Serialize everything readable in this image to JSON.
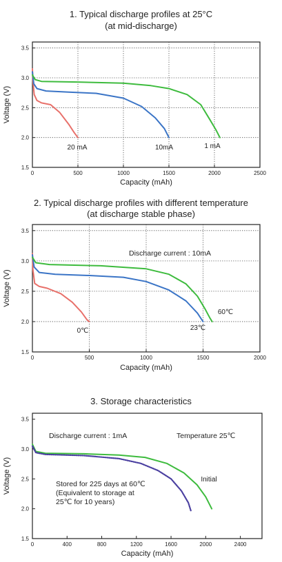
{
  "chart_data": [
    {
      "type": "line",
      "title_line1": "1. Typical discharge profiles at 25°C",
      "title_line2": "(at mid-discharge)",
      "xlabel": "Capacity (mAh)",
      "ylabel": "Voltage (V)",
      "xlim": [
        0,
        2500
      ],
      "ylim": [
        1.5,
        3.6
      ],
      "xticks": [
        "0",
        "500",
        "1000",
        "1500",
        "2000",
        "2500"
      ],
      "yticks": [
        "1.5",
        "2.0",
        "2.5",
        "3.0",
        "3.5"
      ],
      "grid": "dotted",
      "series": [
        {
          "name": "20 mA",
          "color": "#e8706a",
          "points": [
            [
              0,
              3.15
            ],
            [
              5,
              2.95
            ],
            [
              20,
              2.72
            ],
            [
              50,
              2.62
            ],
            [
              100,
              2.58
            ],
            [
              200,
              2.55
            ],
            [
              300,
              2.42
            ],
            [
              400,
              2.22
            ],
            [
              460,
              2.08
            ],
            [
              500,
              2.0
            ]
          ]
        },
        {
          "name": "10mA",
          "color": "#3a74c6",
          "points": [
            [
              0,
              3.1
            ],
            [
              15,
              2.9
            ],
            [
              50,
              2.82
            ],
            [
              150,
              2.78
            ],
            [
              400,
              2.76
            ],
            [
              700,
              2.74
            ],
            [
              1000,
              2.66
            ],
            [
              1200,
              2.52
            ],
            [
              1350,
              2.33
            ],
            [
              1450,
              2.15
            ],
            [
              1500,
              2.0
            ]
          ]
        },
        {
          "name": "1 mA",
          "color": "#3dbb3d",
          "points": [
            [
              0,
              3.05
            ],
            [
              30,
              2.97
            ],
            [
              100,
              2.94
            ],
            [
              500,
              2.93
            ],
            [
              1000,
              2.91
            ],
            [
              1300,
              2.87
            ],
            [
              1500,
              2.82
            ],
            [
              1700,
              2.72
            ],
            [
              1850,
              2.55
            ],
            [
              1950,
              2.3
            ],
            [
              2020,
              2.12
            ],
            [
              2060,
              2.0
            ]
          ]
        }
      ]
    },
    {
      "type": "line",
      "title_line1": "2. Typical discharge profiles with different temperature",
      "title_line2": "(at discharge stable phase)",
      "annotation": "Discharge current : 10mA",
      "xlabel": "Capacity (mAh)",
      "ylabel": "Voltage (V)",
      "xlim": [
        0,
        2000
      ],
      "ylim": [
        1.5,
        3.6
      ],
      "xticks": [
        "0",
        "500",
        "1000",
        "1500",
        "2000"
      ],
      "yticks": [
        "1.5",
        "2.0",
        "2.5",
        "3.0",
        "3.5"
      ],
      "grid": "dotted",
      "series": [
        {
          "name": "0℃",
          "color": "#e8706a",
          "points": [
            [
              0,
              3.12
            ],
            [
              5,
              2.85
            ],
            [
              20,
              2.63
            ],
            [
              60,
              2.58
            ],
            [
              130,
              2.55
            ],
            [
              250,
              2.46
            ],
            [
              350,
              2.32
            ],
            [
              430,
              2.16
            ],
            [
              480,
              2.03
            ],
            [
              500,
              2.0
            ]
          ]
        },
        {
          "name": "23℃",
          "color": "#3a74c6",
          "points": [
            [
              0,
              3.1
            ],
            [
              15,
              2.9
            ],
            [
              60,
              2.81
            ],
            [
              200,
              2.78
            ],
            [
              500,
              2.76
            ],
            [
              800,
              2.73
            ],
            [
              1000,
              2.66
            ],
            [
              1200,
              2.52
            ],
            [
              1350,
              2.34
            ],
            [
              1450,
              2.14
            ],
            [
              1500,
              2.0
            ]
          ]
        },
        {
          "name": "60℃",
          "color": "#3dbb3d",
          "points": [
            [
              0,
              3.06
            ],
            [
              30,
              2.97
            ],
            [
              150,
              2.94
            ],
            [
              600,
              2.92
            ],
            [
              1000,
              2.87
            ],
            [
              1200,
              2.78
            ],
            [
              1350,
              2.62
            ],
            [
              1450,
              2.42
            ],
            [
              1520,
              2.2
            ],
            [
              1560,
              2.06
            ],
            [
              1580,
              2.0
            ]
          ]
        }
      ]
    },
    {
      "type": "line",
      "title": "3. Storage characteristics",
      "annotation_current": "Discharge current : 1mA",
      "annotation_temp": "Temperature  25℃",
      "storage_note": [
        "Stored for 225 days at 60℃",
        "(Equivalent to storage at",
        "25℃ for 10 years)"
      ],
      "xlabel": "Capacity (mAh)",
      "ylabel": "Voltage (V)",
      "xlim": [
        0,
        2650
      ],
      "ylim": [
        1.5,
        3.6
      ],
      "xticks": [
        "0",
        "400",
        "800",
        "1200",
        "1600",
        "2000",
        "2400"
      ],
      "xtick_values": [
        0,
        400,
        800,
        1200,
        1600,
        2000,
        2400
      ],
      "yticks": [
        "1.5",
        "2.0",
        "2.5",
        "3.0",
        "3.5"
      ],
      "grid": "none",
      "series": [
        {
          "name": "Initial",
          "color": "#3dbb3d",
          "points": [
            [
              0,
              3.08
            ],
            [
              40,
              2.96
            ],
            [
              150,
              2.93
            ],
            [
              600,
              2.92
            ],
            [
              1000,
              2.9
            ],
            [
              1300,
              2.86
            ],
            [
              1550,
              2.76
            ],
            [
              1750,
              2.6
            ],
            [
              1900,
              2.4
            ],
            [
              2000,
              2.2
            ],
            [
              2070,
              2.0
            ]
          ]
        },
        {
          "name": "Stored",
          "color": "#4a3fa0",
          "dotted": true,
          "points": [
            [
              0,
              3.05
            ],
            [
              40,
              2.94
            ],
            [
              150,
              2.91
            ],
            [
              600,
              2.89
            ],
            [
              1000,
              2.84
            ],
            [
              1250,
              2.76
            ],
            [
              1450,
              2.64
            ],
            [
              1600,
              2.5
            ],
            [
              1720,
              2.3
            ],
            [
              1800,
              2.1
            ],
            [
              1830,
              1.96
            ]
          ]
        }
      ]
    }
  ]
}
